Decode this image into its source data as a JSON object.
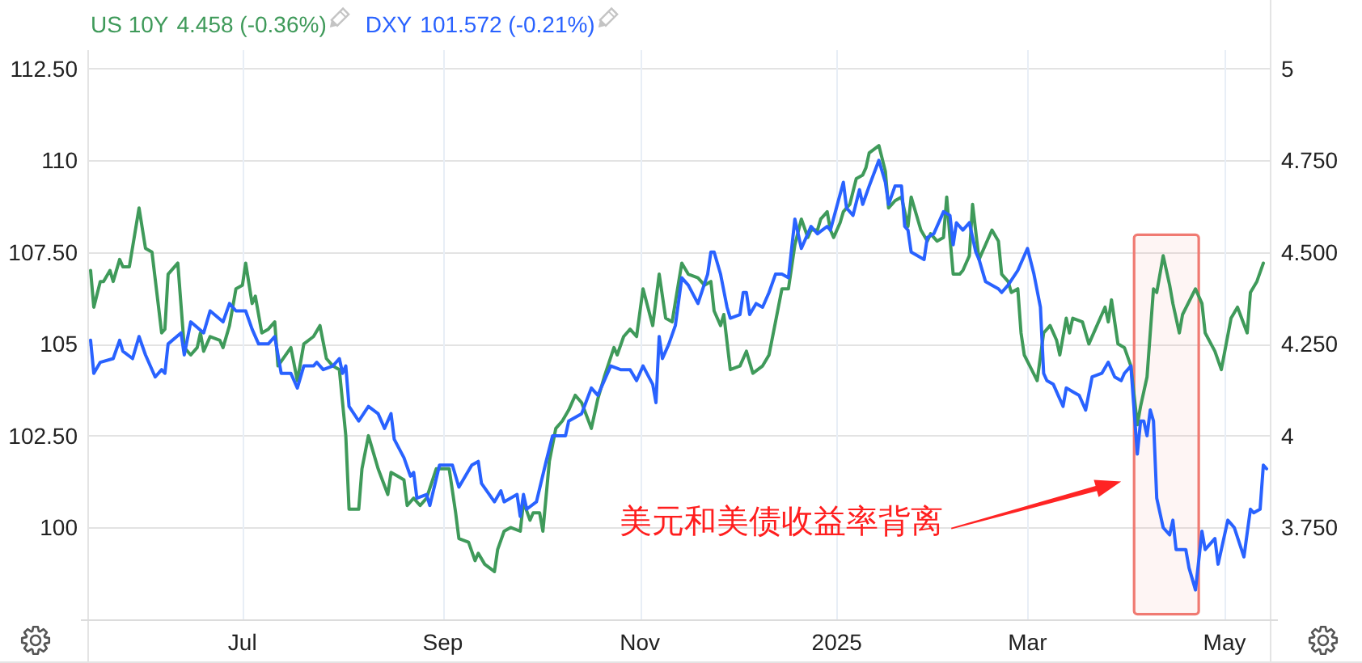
{
  "chart_data": {
    "type": "line",
    "legend": "top left",
    "grid": true,
    "xlim": [
      "2024-05-14",
      "2025-05-15"
    ],
    "xticks": [
      {
        "value": "2024-07-01",
        "label": "Jul"
      },
      {
        "value": "2024-09-01",
        "label": "Sep"
      },
      {
        "value": "2024-11-01",
        "label": "Nov"
      },
      {
        "value": "2025-01-01",
        "label": "2025"
      },
      {
        "value": "2025-03-01",
        "label": "Mar"
      },
      {
        "value": "2025-05-01",
        "label": "May"
      }
    ],
    "ylim": [
      97.5,
      113
    ],
    "yticks": [
      100,
      {
        "value": 102.5,
        "label": "102.50"
      },
      105,
      {
        "value": 107.5,
        "label": "107.50"
      },
      110,
      {
        "value": 112.5,
        "label": "112.50"
      }
    ],
    "y2lim": [
      3.5,
      5.05
    ],
    "y2ticks": [
      {
        "value": 3.75,
        "label": "3.750"
      },
      4,
      {
        "value": 4.25,
        "label": "4.250"
      },
      {
        "value": 4.5,
        "label": "4.500"
      },
      {
        "value": 4.75,
        "label": "4.750"
      },
      5
    ],
    "bands": [
      {
        "axis": "x",
        "from": "2025-04-03",
        "to": "2025-04-23",
        "color": "#f07a72"
      }
    ],
    "annotations": [
      "4.458 (-0.36%)",
      "101.572 (-0.21%)",
      "美元和美债收益率背离"
    ],
    "series": [
      {
        "name": "US 10Y",
        "color": "#3f9a5a",
        "axis": "y2",
        "x": [
          "2024-05-15",
          "2024-05-16",
          "2024-05-18",
          "2024-05-19",
          "2024-05-21",
          "2024-05-22",
          "2024-05-24",
          "2024-05-25",
          "2024-05-27",
          "2024-05-30",
          "2024-06-01",
          "2024-06-03",
          "2024-06-06",
          "2024-06-07",
          "2024-06-08",
          "2024-06-11",
          "2024-06-13",
          "2024-06-15",
          "2024-06-17",
          "2024-06-18",
          "2024-06-19",
          "2024-06-21",
          "2024-06-24",
          "2024-06-25",
          "2024-06-27",
          "2024-06-29",
          "2024-07-01",
          "2024-07-02",
          "2024-07-04",
          "2024-07-05",
          "2024-07-07",
          "2024-07-09",
          "2024-07-11",
          "2024-07-12",
          "2024-07-16",
          "2024-07-18",
          "2024-07-20",
          "2024-07-23",
          "2024-07-25",
          "2024-07-27",
          "2024-07-29",
          "2024-07-31",
          "2024-08-02",
          "2024-08-03",
          "2024-08-06",
          "2024-08-07",
          "2024-08-09",
          "2024-08-11",
          "2024-08-12",
          "2024-08-15",
          "2024-08-16",
          "2024-08-18",
          "2024-08-20",
          "2024-08-21",
          "2024-08-23",
          "2024-08-25",
          "2024-08-27",
          "2024-08-30",
          "2024-09-03",
          "2024-09-05",
          "2024-09-06",
          "2024-09-09",
          "2024-09-11",
          "2024-09-12",
          "2024-09-14",
          "2024-09-17",
          "2024-09-18",
          "2024-09-20",
          "2024-09-22",
          "2024-09-25",
          "2024-09-26",
          "2024-09-28",
          "2024-09-29",
          "2024-10-01",
          "2024-10-02",
          "2024-10-04",
          "2024-10-06",
          "2024-10-08",
          "2024-10-10",
          "2024-10-12",
          "2024-10-14",
          "2024-10-17",
          "2024-10-19",
          "2024-10-21",
          "2024-10-24",
          "2024-10-25",
          "2024-10-27",
          "2024-10-29",
          "2024-10-31",
          "2024-11-02",
          "2024-11-05",
          "2024-11-07",
          "2024-11-09",
          "2024-11-11",
          "2024-11-14",
          "2024-11-16",
          "2024-11-19",
          "2024-11-21",
          "2024-11-23",
          "2024-11-24",
          "2024-11-26",
          "2024-11-27",
          "2024-11-29",
          "2024-12-02",
          "2024-12-04",
          "2024-12-06",
          "2024-12-09",
          "2024-12-11",
          "2024-12-13",
          "2024-12-15",
          "2024-12-17",
          "2024-12-19",
          "2024-12-21",
          "2024-12-23",
          "2024-12-24",
          "2024-12-26",
          "2024-12-27",
          "2024-12-29",
          "2024-12-30",
          "2024-12-31",
          "2025-01-02",
          "2025-01-03",
          "2025-01-05",
          "2025-01-07",
          "2025-01-09",
          "2025-01-10",
          "2025-01-11",
          "2025-01-14",
          "2025-01-16",
          "2025-01-17",
          "2025-01-19",
          "2025-01-21",
          "2025-01-23",
          "2025-01-24",
          "2025-01-27",
          "2025-01-29",
          "2025-01-30",
          "2025-02-01",
          "2025-02-03",
          "2025-02-04",
          "2025-02-05",
          "2025-02-06",
          "2025-02-08",
          "2025-02-09",
          "2025-02-11",
          "2025-02-12",
          "2025-02-14",
          "2025-02-16",
          "2025-02-18",
          "2025-02-20",
          "2025-02-21",
          "2025-02-23",
          "2025-02-24",
          "2025-02-26",
          "2025-02-27",
          "2025-02-28",
          "2025-03-04",
          "2025-03-06",
          "2025-03-08",
          "2025-03-10",
          "2025-03-11",
          "2025-03-13",
          "2025-03-14",
          "2025-03-15",
          "2025-03-18",
          "2025-03-20",
          "2025-03-22",
          "2025-03-25",
          "2025-03-26",
          "2025-03-27",
          "2025-03-29",
          "2025-03-31",
          "2025-04-02",
          "2025-04-04",
          "2025-04-05",
          "2025-04-07",
          "2025-04-09",
          "2025-04-10",
          "2025-04-12",
          "2025-04-14",
          "2025-04-15",
          "2025-04-17",
          "2025-04-18",
          "2025-04-22",
          "2025-04-24",
          "2025-04-25",
          "2025-04-28",
          "2025-04-30",
          "2025-05-03",
          "2025-05-05",
          "2025-05-08",
          "2025-05-09",
          "2025-05-11",
          "2025-05-13"
        ],
        "values": [
          4.45,
          4.35,
          4.42,
          4.42,
          4.45,
          4.42,
          4.48,
          4.46,
          4.46,
          4.62,
          4.51,
          4.5,
          4.28,
          4.29,
          4.44,
          4.47,
          4.24,
          4.22,
          4.24,
          4.28,
          4.23,
          4.27,
          4.26,
          4.24,
          4.3,
          4.4,
          4.41,
          4.47,
          4.36,
          4.38,
          4.28,
          4.29,
          4.31,
          4.19,
          4.24,
          4.15,
          4.25,
          4.27,
          4.3,
          4.21,
          4.19,
          4.18,
          4.0,
          3.8,
          3.8,
          3.91,
          4.0,
          3.94,
          3.91,
          3.84,
          3.9,
          3.89,
          3.88,
          3.81,
          3.83,
          3.81,
          3.83,
          3.91,
          3.91,
          3.79,
          3.72,
          3.71,
          3.66,
          3.68,
          3.65,
          3.63,
          3.69,
          3.74,
          3.75,
          3.74,
          3.82,
          3.77,
          3.79,
          3.79,
          3.74,
          3.93,
          4.02,
          4.04,
          4.07,
          4.11,
          4.09,
          4.02,
          4.1,
          4.16,
          4.24,
          4.22,
          4.27,
          4.29,
          4.27,
          4.4,
          4.3,
          4.44,
          4.32,
          4.31,
          4.47,
          4.44,
          4.43,
          4.41,
          4.42,
          4.34,
          4.3,
          4.33,
          4.18,
          4.19,
          4.23,
          4.17,
          4.19,
          4.22,
          4.31,
          4.4,
          4.4,
          4.52,
          4.59,
          4.54,
          4.56,
          4.56,
          4.59,
          4.61,
          4.56,
          4.54,
          4.58,
          4.61,
          4.63,
          4.7,
          4.71,
          4.73,
          4.77,
          4.79,
          4.72,
          4.62,
          4.64,
          4.65,
          4.57,
          4.65,
          4.56,
          4.53,
          4.55,
          4.53,
          4.54,
          4.65,
          4.54,
          4.44,
          4.44,
          4.45,
          4.49,
          4.63,
          4.48,
          4.52,
          4.56,
          4.53,
          4.44,
          4.42,
          4.39,
          4.4,
          4.28,
          4.22,
          4.15,
          4.28,
          4.3,
          4.26,
          4.22,
          4.32,
          4.28,
          4.32,
          4.31,
          4.25,
          4.29,
          4.35,
          4.31,
          4.37,
          4.25,
          4.24,
          4.19,
          4.03,
          4.08,
          4.16,
          4.4,
          4.39,
          4.49,
          4.41,
          4.36,
          4.28,
          4.33,
          4.4,
          4.36,
          4.28,
          4.23,
          4.18,
          4.32,
          4.35,
          4.28,
          4.39,
          4.42,
          4.47
        ]
      },
      {
        "name": "DXY",
        "color": "#2962ff",
        "x": [
          "2024-05-15",
          "2024-05-16",
          "2024-05-18",
          "2024-05-22",
          "2024-05-24",
          "2024-05-25",
          "2024-05-28",
          "2024-05-30",
          "2024-06-01",
          "2024-06-04",
          "2024-06-06",
          "2024-06-07",
          "2024-06-08",
          "2024-06-12",
          "2024-06-13",
          "2024-06-15",
          "2024-06-19",
          "2024-06-21",
          "2024-06-25",
          "2024-06-27",
          "2024-06-29",
          "2024-07-02",
          "2024-07-04",
          "2024-07-06",
          "2024-07-09",
          "2024-07-11",
          "2024-07-13",
          "2024-07-16",
          "2024-07-18",
          "2024-07-20",
          "2024-07-23",
          "2024-07-24",
          "2024-07-26",
          "2024-07-29",
          "2024-07-31",
          "2024-08-01",
          "2024-08-02",
          "2024-08-03",
          "2024-08-06",
          "2024-08-09",
          "2024-08-12",
          "2024-08-14",
          "2024-08-16",
          "2024-08-17",
          "2024-08-20",
          "2024-08-22",
          "2024-08-23",
          "2024-08-24",
          "2024-08-27",
          "2024-08-28",
          "2024-08-31",
          "2024-09-04",
          "2024-09-06",
          "2024-09-10",
          "2024-09-12",
          "2024-09-13",
          "2024-09-17",
          "2024-09-19",
          "2024-09-20",
          "2024-09-24",
          "2024-09-25",
          "2024-09-26",
          "2024-09-27",
          "2024-09-30",
          "2024-10-03",
          "2024-10-05",
          "2024-10-09",
          "2024-10-10",
          "2024-10-14",
          "2024-10-17",
          "2024-10-19",
          "2024-10-23",
          "2024-10-26",
          "2024-10-29",
          "2024-10-31",
          "2024-11-02",
          "2024-11-05",
          "2024-11-06",
          "2024-11-07",
          "2024-11-08",
          "2024-11-10",
          "2024-11-12",
          "2024-11-14",
          "2024-11-16",
          "2024-11-19",
          "2024-11-22",
          "2024-11-23",
          "2024-11-24",
          "2024-11-26",
          "2024-11-28",
          "2024-11-29",
          "2024-12-02",
          "2024-12-03",
          "2024-12-04",
          "2024-12-05",
          "2024-12-07",
          "2024-12-09",
          "2024-12-11",
          "2024-12-13",
          "2024-12-15",
          "2024-12-17",
          "2024-12-19",
          "2024-12-21",
          "2024-12-23",
          "2024-12-24",
          "2024-12-26",
          "2024-12-29",
          "2024-12-30",
          "2025-01-03",
          "2025-01-04",
          "2025-01-06",
          "2025-01-08",
          "2025-01-09",
          "2025-01-11",
          "2025-01-14",
          "2025-01-16",
          "2025-01-17",
          "2025-01-19",
          "2025-01-21",
          "2025-01-22",
          "2025-01-23",
          "2025-01-24",
          "2025-01-28",
          "2025-01-29",
          "2025-01-31",
          "2025-02-03",
          "2025-02-05",
          "2025-02-06",
          "2025-02-07",
          "2025-02-09",
          "2025-02-11",
          "2025-02-13",
          "2025-02-14",
          "2025-02-16",
          "2025-02-18",
          "2025-02-20",
          "2025-02-21",
          "2025-02-23",
          "2025-02-26",
          "2025-03-01",
          "2025-03-03",
          "2025-03-05",
          "2025-03-06",
          "2025-03-07",
          "2025-03-09",
          "2025-03-12",
          "2025-03-13",
          "2025-03-15",
          "2025-03-17",
          "2025-03-19",
          "2025-03-21",
          "2025-03-24",
          "2025-03-26",
          "2025-03-28",
          "2025-03-30",
          "2025-03-31",
          "2025-04-02",
          "2025-04-04",
          "2025-04-05",
          "2025-04-06",
          "2025-04-07",
          "2025-04-08",
          "2025-04-09",
          "2025-04-10",
          "2025-04-12",
          "2025-04-14",
          "2025-04-15",
          "2025-04-16",
          "2025-04-19",
          "2025-04-20",
          "2025-04-22",
          "2025-04-24",
          "2025-04-25",
          "2025-04-26",
          "2025-04-28",
          "2025-04-29",
          "2025-05-02",
          "2025-05-04",
          "2025-05-07",
          "2025-05-09",
          "2025-05-10",
          "2025-05-12",
          "2025-05-13",
          "2025-05-14"
        ],
        "values": [
          105.1,
          104.2,
          104.5,
          104.6,
          105.1,
          104.8,
          104.6,
          105.2,
          104.7,
          104.1,
          104.3,
          104.2,
          105.0,
          105.3,
          104.7,
          105.6,
          105.3,
          105.9,
          105.6,
          106.1,
          105.9,
          105.9,
          105.4,
          105.0,
          105.0,
          105.2,
          104.2,
          104.2,
          103.8,
          104.4,
          104.4,
          104.5,
          104.3,
          104.4,
          104.6,
          104.2,
          104.4,
          103.3,
          102.9,
          103.3,
          103.1,
          102.7,
          103.1,
          102.4,
          101.9,
          101.4,
          101.5,
          100.8,
          100.9,
          100.6,
          101.7,
          101.7,
          101.1,
          101.7,
          101.8,
          101.2,
          100.7,
          101.0,
          100.7,
          100.9,
          100.3,
          100.9,
          100.5,
          100.7,
          101.8,
          102.5,
          102.5,
          102.9,
          103.1,
          103.8,
          103.6,
          104.4,
          104.3,
          104.3,
          104.0,
          104.4,
          103.9,
          103.4,
          105.2,
          104.6,
          105.0,
          105.5,
          106.8,
          106.6,
          106.1,
          106.9,
          107.5,
          107.5,
          106.9,
          106.0,
          105.7,
          105.8,
          106.4,
          106.4,
          105.8,
          106.1,
          106.0,
          106.4,
          106.9,
          106.9,
          106.8,
          108.4,
          107.6,
          108.0,
          108.2,
          108.0,
          108.2,
          108.1,
          109.4,
          108.7,
          108.5,
          109.2,
          108.8,
          109.3,
          110.0,
          109.4,
          108.8,
          109.3,
          109.3,
          108.2,
          108.1,
          107.5,
          107.3,
          107.9,
          108.0,
          108.6,
          108.5,
          107.7,
          108.3,
          108.1,
          108.3,
          107.5,
          107.3,
          106.7,
          106.6,
          106.5,
          106.4,
          106.6,
          107.0,
          107.6,
          106.9,
          106.0,
          104.2,
          104.0,
          103.9,
          103.3,
          103.8,
          103.7,
          103.6,
          103.2,
          104.1,
          104.2,
          104.5,
          104.1,
          104.0,
          104.2,
          104.4,
          102.0,
          102.9,
          102.9,
          102.5,
          103.2,
          102.9,
          100.8,
          100.0,
          99.8,
          100.2,
          99.4,
          99.4,
          98.9,
          98.3,
          99.9,
          99.4,
          99.5,
          99.7,
          99.0,
          100.2,
          100.0,
          99.2,
          100.5,
          100.4,
          100.5,
          101.7,
          101.6
        ]
      }
    ]
  }
}
